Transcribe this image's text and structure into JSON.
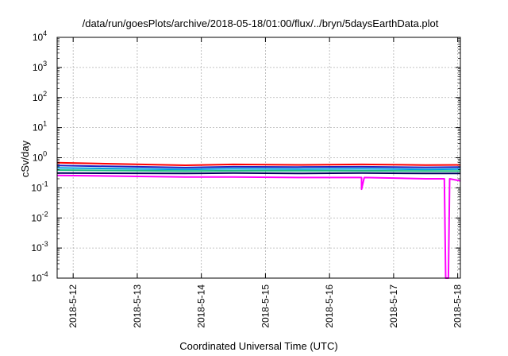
{
  "chart_data": {
    "type": "line",
    "title": "/data/run/goesPlots/archive/2018-05-18/01:00/flux/../bryn/5daysEarthData.plot",
    "xlabel": "Coordinated Universal Time (UTC)",
    "ylabel": "cSv/day",
    "yscale": "log",
    "ylim": [
      0.0001,
      10000
    ],
    "xlim": [
      "2018-05-11 18:00",
      "2018-05-18 01:00"
    ],
    "grid": true,
    "legend": "none",
    "xticks": [
      {
        "x": "2018-05-12 00:00",
        "label": "2018-5-12"
      },
      {
        "x": "2018-05-13 00:00",
        "label": "2018-5-13"
      },
      {
        "x": "2018-05-14 00:00",
        "label": "2018-5-14"
      },
      {
        "x": "2018-05-15 00:00",
        "label": "2018-5-15"
      },
      {
        "x": "2018-05-16 00:00",
        "label": "2018-5-16"
      },
      {
        "x": "2018-05-17 00:00",
        "label": "2018-5-17"
      },
      {
        "x": "2018-05-18 00:00",
        "label": "2018-5-18"
      }
    ],
    "yticks": [
      {
        "y": 0.0001,
        "base": "10",
        "exp": "-4"
      },
      {
        "y": 0.001,
        "base": "10",
        "exp": "-3"
      },
      {
        "y": 0.01,
        "base": "10",
        "exp": "-2"
      },
      {
        "y": 0.1,
        "base": "10",
        "exp": "-1"
      },
      {
        "y": 1,
        "base": "10",
        "exp": "0"
      },
      {
        "y": 10,
        "base": "10",
        "exp": "1"
      },
      {
        "y": 100,
        "base": "10",
        "exp": "2"
      },
      {
        "y": 1000,
        "base": "10",
        "exp": "3"
      },
      {
        "y": 10000,
        "base": "10",
        "exp": "4"
      }
    ],
    "series": [
      {
        "color": "#ff0000",
        "points": [
          [
            "2018-05-11 18:00",
            0.68
          ],
          [
            "2018-05-13 18:00",
            0.56
          ],
          [
            "2018-05-14 12:00",
            0.6
          ],
          [
            "2018-05-15 12:00",
            0.58
          ],
          [
            "2018-05-16 12:00",
            0.6
          ],
          [
            "2018-05-17 12:00",
            0.57
          ],
          [
            "2018-05-18 01:00",
            0.58
          ]
        ]
      },
      {
        "color": "#2020c0",
        "points": [
          [
            "2018-05-11 18:00",
            0.55
          ],
          [
            "2018-05-13 18:00",
            0.47
          ],
          [
            "2018-05-14 12:00",
            0.5
          ],
          [
            "2018-05-15 12:00",
            0.49
          ],
          [
            "2018-05-16 12:00",
            0.5
          ],
          [
            "2018-05-17 12:00",
            0.48
          ],
          [
            "2018-05-18 01:00",
            0.49
          ]
        ]
      },
      {
        "color": "#00a0e0",
        "points": [
          [
            "2018-05-11 18:00",
            0.46
          ],
          [
            "2018-05-13 18:00",
            0.41
          ],
          [
            "2018-05-14 12:00",
            0.43
          ],
          [
            "2018-05-15 12:00",
            0.42
          ],
          [
            "2018-05-16 12:00",
            0.43
          ],
          [
            "2018-05-17 12:00",
            0.41
          ],
          [
            "2018-05-18 01:00",
            0.42
          ]
        ]
      },
      {
        "color": "#20c080",
        "points": [
          [
            "2018-05-11 18:00",
            0.39
          ],
          [
            "2018-05-13 18:00",
            0.36
          ],
          [
            "2018-05-14 12:00",
            0.37
          ],
          [
            "2018-05-15 12:00",
            0.37
          ],
          [
            "2018-05-16 12:00",
            0.37
          ],
          [
            "2018-05-17 12:00",
            0.36
          ],
          [
            "2018-05-18 01:00",
            0.36
          ]
        ]
      },
      {
        "color": "#000060",
        "points": [
          [
            "2018-05-11 18:00",
            0.31
          ],
          [
            "2018-05-13 18:00",
            0.3
          ],
          [
            "2018-05-14 12:00",
            0.31
          ],
          [
            "2018-05-15 12:00",
            0.3
          ],
          [
            "2018-05-16 12:00",
            0.31
          ],
          [
            "2018-05-17 12:00",
            0.3
          ],
          [
            "2018-05-18 01:00",
            0.3
          ]
        ]
      },
      {
        "color": "#ff00ff",
        "points": [
          [
            "2018-05-11 18:00",
            0.26
          ],
          [
            "2018-05-13 18:00",
            0.23
          ],
          [
            "2018-05-14 12:00",
            0.23
          ],
          [
            "2018-05-15 12:00",
            0.22
          ],
          [
            "2018-05-16 12:00",
            0.22
          ],
          [
            "2018-05-16 12:00",
            0.09
          ],
          [
            "2018-05-16 13:00",
            0.22
          ],
          [
            "2018-05-17 12:00",
            0.2
          ],
          [
            "2018-05-17 19:00",
            0.2
          ],
          [
            "2018-05-17 19:30",
            0.0001
          ],
          [
            "2018-05-17 20:30",
            0.0001
          ],
          [
            "2018-05-17 21:00",
            0.2
          ],
          [
            "2018-05-18 01:00",
            0.17
          ]
        ]
      }
    ]
  }
}
